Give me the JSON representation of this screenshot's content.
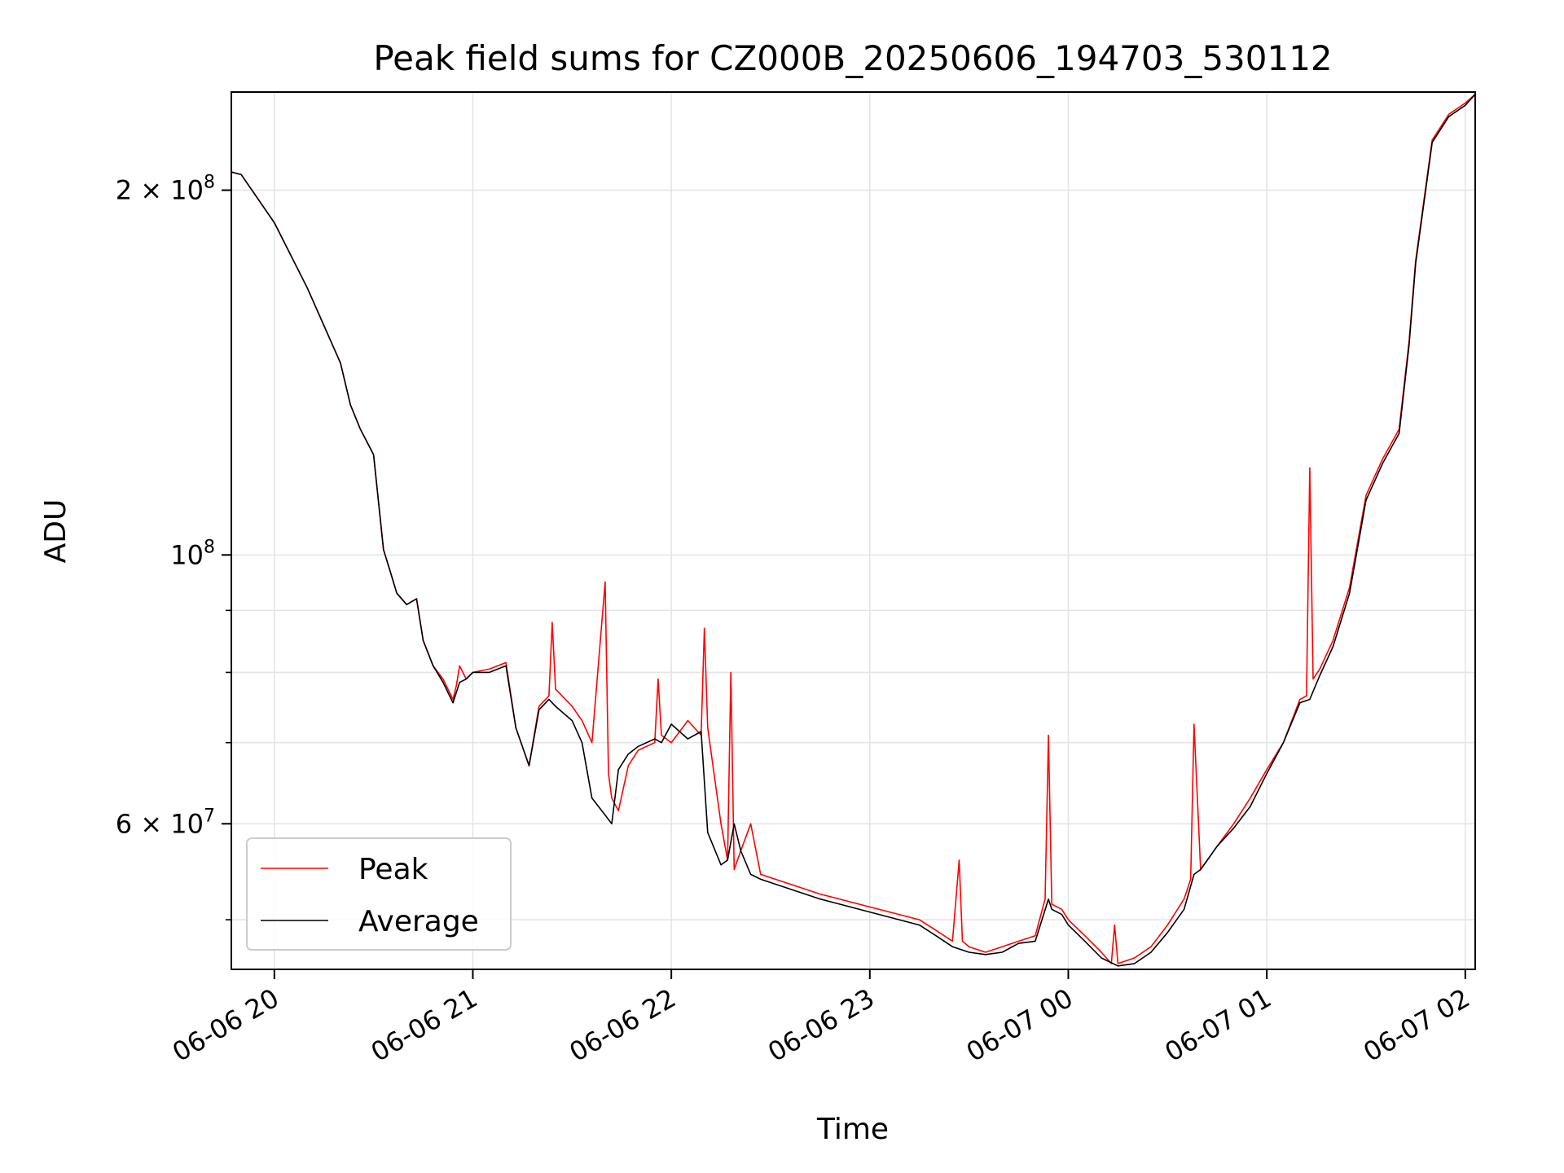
{
  "chart_data": {
    "type": "line",
    "title": "Peak field sums for CZ000B_20250606_194703_530112",
    "xlabel": "Time",
    "ylabel": "ADU",
    "yscale": "log",
    "xlim": [
      "2025-06-06 19:47",
      "2025-06-07 02:03"
    ],
    "ylim": [
      45500000,
      241000000
    ],
    "x_ticks": [
      {
        "value": "2025-06-06 20:00",
        "label": "06-06 20"
      },
      {
        "value": "2025-06-06 21:00",
        "label": "06-06 21"
      },
      {
        "value": "2025-06-06 22:00",
        "label": "06-06 22"
      },
      {
        "value": "2025-06-06 23:00",
        "label": "06-06 23"
      },
      {
        "value": "2025-06-07 00:00",
        "label": "06-07 00"
      },
      {
        "value": "2025-06-07 01:00",
        "label": "06-07 01"
      },
      {
        "value": "2025-06-07 02:00",
        "label": "06-07 02"
      }
    ],
    "y_ticks_major": [
      {
        "value": 60000000,
        "label": "6 × 10",
        "exp": "7"
      },
      {
        "value": 100000000,
        "label": "10",
        "exp": "8"
      },
      {
        "value": 200000000,
        "label": "2 × 10",
        "exp": "8"
      }
    ],
    "y_ticks_minor": [
      50000000,
      70000000,
      80000000,
      90000000
    ],
    "grid": true,
    "legend_position": "lower-left",
    "series": [
      {
        "name": "Peak",
        "color": "#ff0000",
        "x": [
          "2025-06-06 19:47",
          "2025-06-06 19:50",
          "2025-06-06 20:00",
          "2025-06-06 20:10",
          "2025-06-06 20:20",
          "2025-06-06 20:23",
          "2025-06-06 20:26",
          "2025-06-06 20:30",
          "2025-06-06 20:33",
          "2025-06-06 20:35",
          "2025-06-06 20:37",
          "2025-06-06 20:40",
          "2025-06-06 20:43",
          "2025-06-06 20:45",
          "2025-06-06 20:48",
          "2025-06-06 20:51",
          "2025-06-06 20:54",
          "2025-06-06 20:55",
          "2025-06-06 20:56",
          "2025-06-06 20:58",
          "2025-06-06 21:00",
          "2025-06-06 21:05",
          "2025-06-06 21:10",
          "2025-06-06 21:13",
          "2025-06-06 21:17",
          "2025-06-06 21:20",
          "2025-06-06 21:23",
          "2025-06-06 21:24",
          "2025-06-06 21:25",
          "2025-06-06 21:30",
          "2025-06-06 21:33",
          "2025-06-06 21:36",
          "2025-06-06 21:40",
          "2025-06-06 21:41",
          "2025-06-06 21:42",
          "2025-06-06 21:44",
          "2025-06-06 21:47",
          "2025-06-06 21:50",
          "2025-06-06 21:55",
          "2025-06-06 21:56",
          "2025-06-06 21:57",
          "2025-06-06 22:00",
          "2025-06-06 22:05",
          "2025-06-06 22:09",
          "2025-06-06 22:10",
          "2025-06-06 22:11",
          "2025-06-06 22:15",
          "2025-06-06 22:17",
          "2025-06-06 22:18",
          "2025-06-06 22:19",
          "2025-06-06 22:21",
          "2025-06-06 22:24",
          "2025-06-06 22:27",
          "2025-06-06 22:45",
          "2025-06-06 23:15",
          "2025-06-06 23:20",
          "2025-06-06 23:25",
          "2025-06-06 23:27",
          "2025-06-06 23:28",
          "2025-06-06 23:30",
          "2025-06-06 23:35",
          "2025-06-06 23:40",
          "2025-06-06 23:45",
          "2025-06-06 23:50",
          "2025-06-06 23:53",
          "2025-06-06 23:54",
          "2025-06-06 23:55",
          "2025-06-06 23:58",
          "2025-06-07 00:00",
          "2025-06-07 00:05",
          "2025-06-07 00:10",
          "2025-06-07 00:13",
          "2025-06-07 00:14",
          "2025-06-07 00:15",
          "2025-06-07 00:20",
          "2025-06-07 00:25",
          "2025-06-07 00:30",
          "2025-06-07 00:35",
          "2025-06-07 00:37",
          "2025-06-07 00:38",
          "2025-06-07 00:40",
          "2025-06-07 00:45",
          "2025-06-07 00:50",
          "2025-06-07 00:55",
          "2025-06-07 01:00",
          "2025-06-07 01:05",
          "2025-06-07 01:10",
          "2025-06-07 01:12",
          "2025-06-07 01:13",
          "2025-06-07 01:14",
          "2025-06-07 01:16",
          "2025-06-07 01:20",
          "2025-06-07 01:25",
          "2025-06-07 01:30",
          "2025-06-07 01:35",
          "2025-06-07 01:40",
          "2025-06-07 01:43",
          "2025-06-07 01:45",
          "2025-06-07 01:50",
          "2025-06-07 01:55",
          "2025-06-07 02:00",
          "2025-06-07 02:03"
        ],
        "y": [
          207000000,
          206000000,
          188000000,
          166000000,
          144000000,
          133000000,
          127000000,
          121000000,
          101000000,
          97000000,
          93000000,
          91000000,
          92000000,
          85000000,
          81000000,
          79000000,
          76000000,
          78000000,
          81000000,
          79000000,
          80000000,
          80500000,
          81500000,
          72000000,
          67000000,
          75000000,
          76500000,
          88000000,
          77500000,
          75000000,
          73000000,
          70000000,
          95000000,
          66000000,
          63000000,
          61500000,
          67000000,
          69000000,
          70000000,
          79000000,
          71000000,
          70000000,
          73000000,
          71000000,
          87000000,
          72000000,
          60000000,
          56000000,
          80000000,
          55000000,
          57000000,
          60000000,
          54500000,
          52500000,
          50000000,
          49000000,
          48000000,
          56000000,
          48000000,
          47500000,
          47000000,
          47500000,
          48000000,
          48500000,
          52000000,
          71000000,
          51500000,
          51000000,
          50000000,
          48500000,
          47000000,
          46000000,
          49500000,
          46000000,
          46500000,
          47500000,
          49500000,
          52000000,
          54000000,
          72500000,
          55000000,
          57500000,
          60000000,
          63000000,
          66500000,
          70000000,
          76000000,
          76500000,
          118000000,
          79000000,
          80500000,
          85000000,
          94000000,
          112000000,
          120000000,
          127000000,
          150000000,
          175000000,
          220000000,
          231000000,
          236000000,
          240000000
        ]
      },
      {
        "name": "Average",
        "color": "#000000",
        "x": [
          "2025-06-06 19:47",
          "2025-06-06 19:50",
          "2025-06-06 20:00",
          "2025-06-06 20:10",
          "2025-06-06 20:20",
          "2025-06-06 20:23",
          "2025-06-06 20:26",
          "2025-06-06 20:30",
          "2025-06-06 20:33",
          "2025-06-06 20:35",
          "2025-06-06 20:37",
          "2025-06-06 20:40",
          "2025-06-06 20:43",
          "2025-06-06 20:45",
          "2025-06-06 20:48",
          "2025-06-06 20:51",
          "2025-06-06 20:54",
          "2025-06-06 20:56",
          "2025-06-06 20:58",
          "2025-06-06 21:00",
          "2025-06-06 21:05",
          "2025-06-06 21:10",
          "2025-06-06 21:13",
          "2025-06-06 21:17",
          "2025-06-06 21:20",
          "2025-06-06 21:23",
          "2025-06-06 21:25",
          "2025-06-06 21:30",
          "2025-06-06 21:33",
          "2025-06-06 21:36",
          "2025-06-06 21:40",
          "2025-06-06 21:42",
          "2025-06-06 21:44",
          "2025-06-06 21:47",
          "2025-06-06 21:50",
          "2025-06-06 21:55",
          "2025-06-06 21:57",
          "2025-06-06 22:00",
          "2025-06-06 22:05",
          "2025-06-06 22:09",
          "2025-06-06 22:11",
          "2025-06-06 22:15",
          "2025-06-06 22:17",
          "2025-06-06 22:19",
          "2025-06-06 22:21",
          "2025-06-06 22:24",
          "2025-06-06 22:27",
          "2025-06-06 22:45",
          "2025-06-06 23:15",
          "2025-06-06 23:20",
          "2025-06-06 23:25",
          "2025-06-06 23:30",
          "2025-06-06 23:35",
          "2025-06-06 23:40",
          "2025-06-06 23:45",
          "2025-06-06 23:50",
          "2025-06-06 23:54",
          "2025-06-06 23:55",
          "2025-06-06 23:58",
          "2025-06-07 00:00",
          "2025-06-07 00:05",
          "2025-06-07 00:10",
          "2025-06-07 00:15",
          "2025-06-07 00:20",
          "2025-06-07 00:25",
          "2025-06-07 00:30",
          "2025-06-07 00:35",
          "2025-06-07 00:38",
          "2025-06-07 00:40",
          "2025-06-07 00:45",
          "2025-06-07 00:50",
          "2025-06-07 00:55",
          "2025-06-07 01:00",
          "2025-06-07 01:05",
          "2025-06-07 01:10",
          "2025-06-07 01:13",
          "2025-06-07 01:16",
          "2025-06-07 01:20",
          "2025-06-07 01:25",
          "2025-06-07 01:30",
          "2025-06-07 01:35",
          "2025-06-07 01:40",
          "2025-06-07 01:43",
          "2025-06-07 01:45",
          "2025-06-07 01:50",
          "2025-06-07 01:55",
          "2025-06-07 02:00",
          "2025-06-07 02:03"
        ],
        "y": [
          207000000,
          206000000,
          188000000,
          166000000,
          144000000,
          133000000,
          127000000,
          121000000,
          101000000,
          97000000,
          93000000,
          91000000,
          92000000,
          85000000,
          81000000,
          78500000,
          75500000,
          78500000,
          79000000,
          80000000,
          80000000,
          81000000,
          72000000,
          67000000,
          74500000,
          76000000,
          75000000,
          73000000,
          70000000,
          63000000,
          61000000,
          60000000,
          66500000,
          68500000,
          69500000,
          70500000,
          70000000,
          72500000,
          70500000,
          71500000,
          59000000,
          55500000,
          56000000,
          60000000,
          57000000,
          54500000,
          54000000,
          52000000,
          49500000,
          48500000,
          47500000,
          47000000,
          46800000,
          47000000,
          47800000,
          48000000,
          52000000,
          51000000,
          50500000,
          49500000,
          48000000,
          46500000,
          45800000,
          46000000,
          47000000,
          48800000,
          51000000,
          54500000,
          55000000,
          57500000,
          59500000,
          62000000,
          66000000,
          70000000,
          75500000,
          76000000,
          79500000,
          84000000,
          93000000,
          111000000,
          119000000,
          126000000,
          149000000,
          174000000,
          219000000,
          230000000,
          235000000,
          240000000
        ]
      }
    ]
  }
}
